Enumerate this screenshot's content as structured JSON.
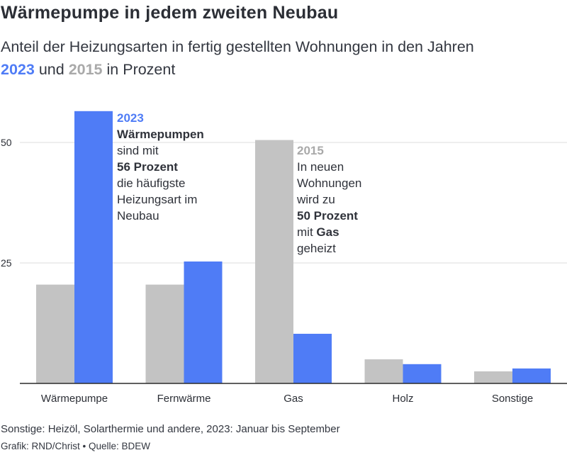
{
  "title": "Wärmepumpe in jedem zweiten Neubau",
  "subtitle": {
    "line1": "Anteil der Heizungsarten in fertig gestellten Wohnungen in den Jahren",
    "year_a": "2023",
    "join": "und",
    "year_b": "2015",
    "suffix": "in Prozent"
  },
  "colors": {
    "series_2023": "#4f7cf6",
    "series_2015": "#c3c3c3",
    "grid": "#dddddd",
    "text": "#2c2f36"
  },
  "chart_data": {
    "type": "bar",
    "categories": [
      "Wärmepumpe",
      "Fernwärme",
      "Gas",
      "Holz",
      "Sonstige"
    ],
    "series": [
      {
        "name": "2015",
        "values": [
          20.5,
          20.5,
          50.5,
          5.0,
          2.5
        ]
      },
      {
        "name": "2023",
        "values": [
          56.5,
          25.3,
          10.3,
          4.0,
          3.1
        ]
      }
    ],
    "y_ticks": [
      25,
      50
    ],
    "ylim": [
      0,
      57
    ],
    "grid": true,
    "xlabel": "",
    "ylabel": ""
  },
  "annotations": {
    "a2023": {
      "year": "2023",
      "l1": "Wärmepumpen",
      "l2": "sind mit",
      "l3": "56 Prozent",
      "l4": "die häufigste",
      "l5": "Heizungsart im",
      "l6": "Neubau"
    },
    "a2015": {
      "year": "2015",
      "l1": "In neuen",
      "l2": "Wohnungen",
      "l3": "wird zu",
      "l4": "50 Prozent",
      "l5_pre": "mit",
      "l5_bold": "Gas",
      "l6": "geheizt"
    }
  },
  "footnote": "Sonstige: Heizöl, Solarthermie und andere, 2023: Januar bis September",
  "credit": "Grafik: RND/Christ • Quelle: BDEW"
}
